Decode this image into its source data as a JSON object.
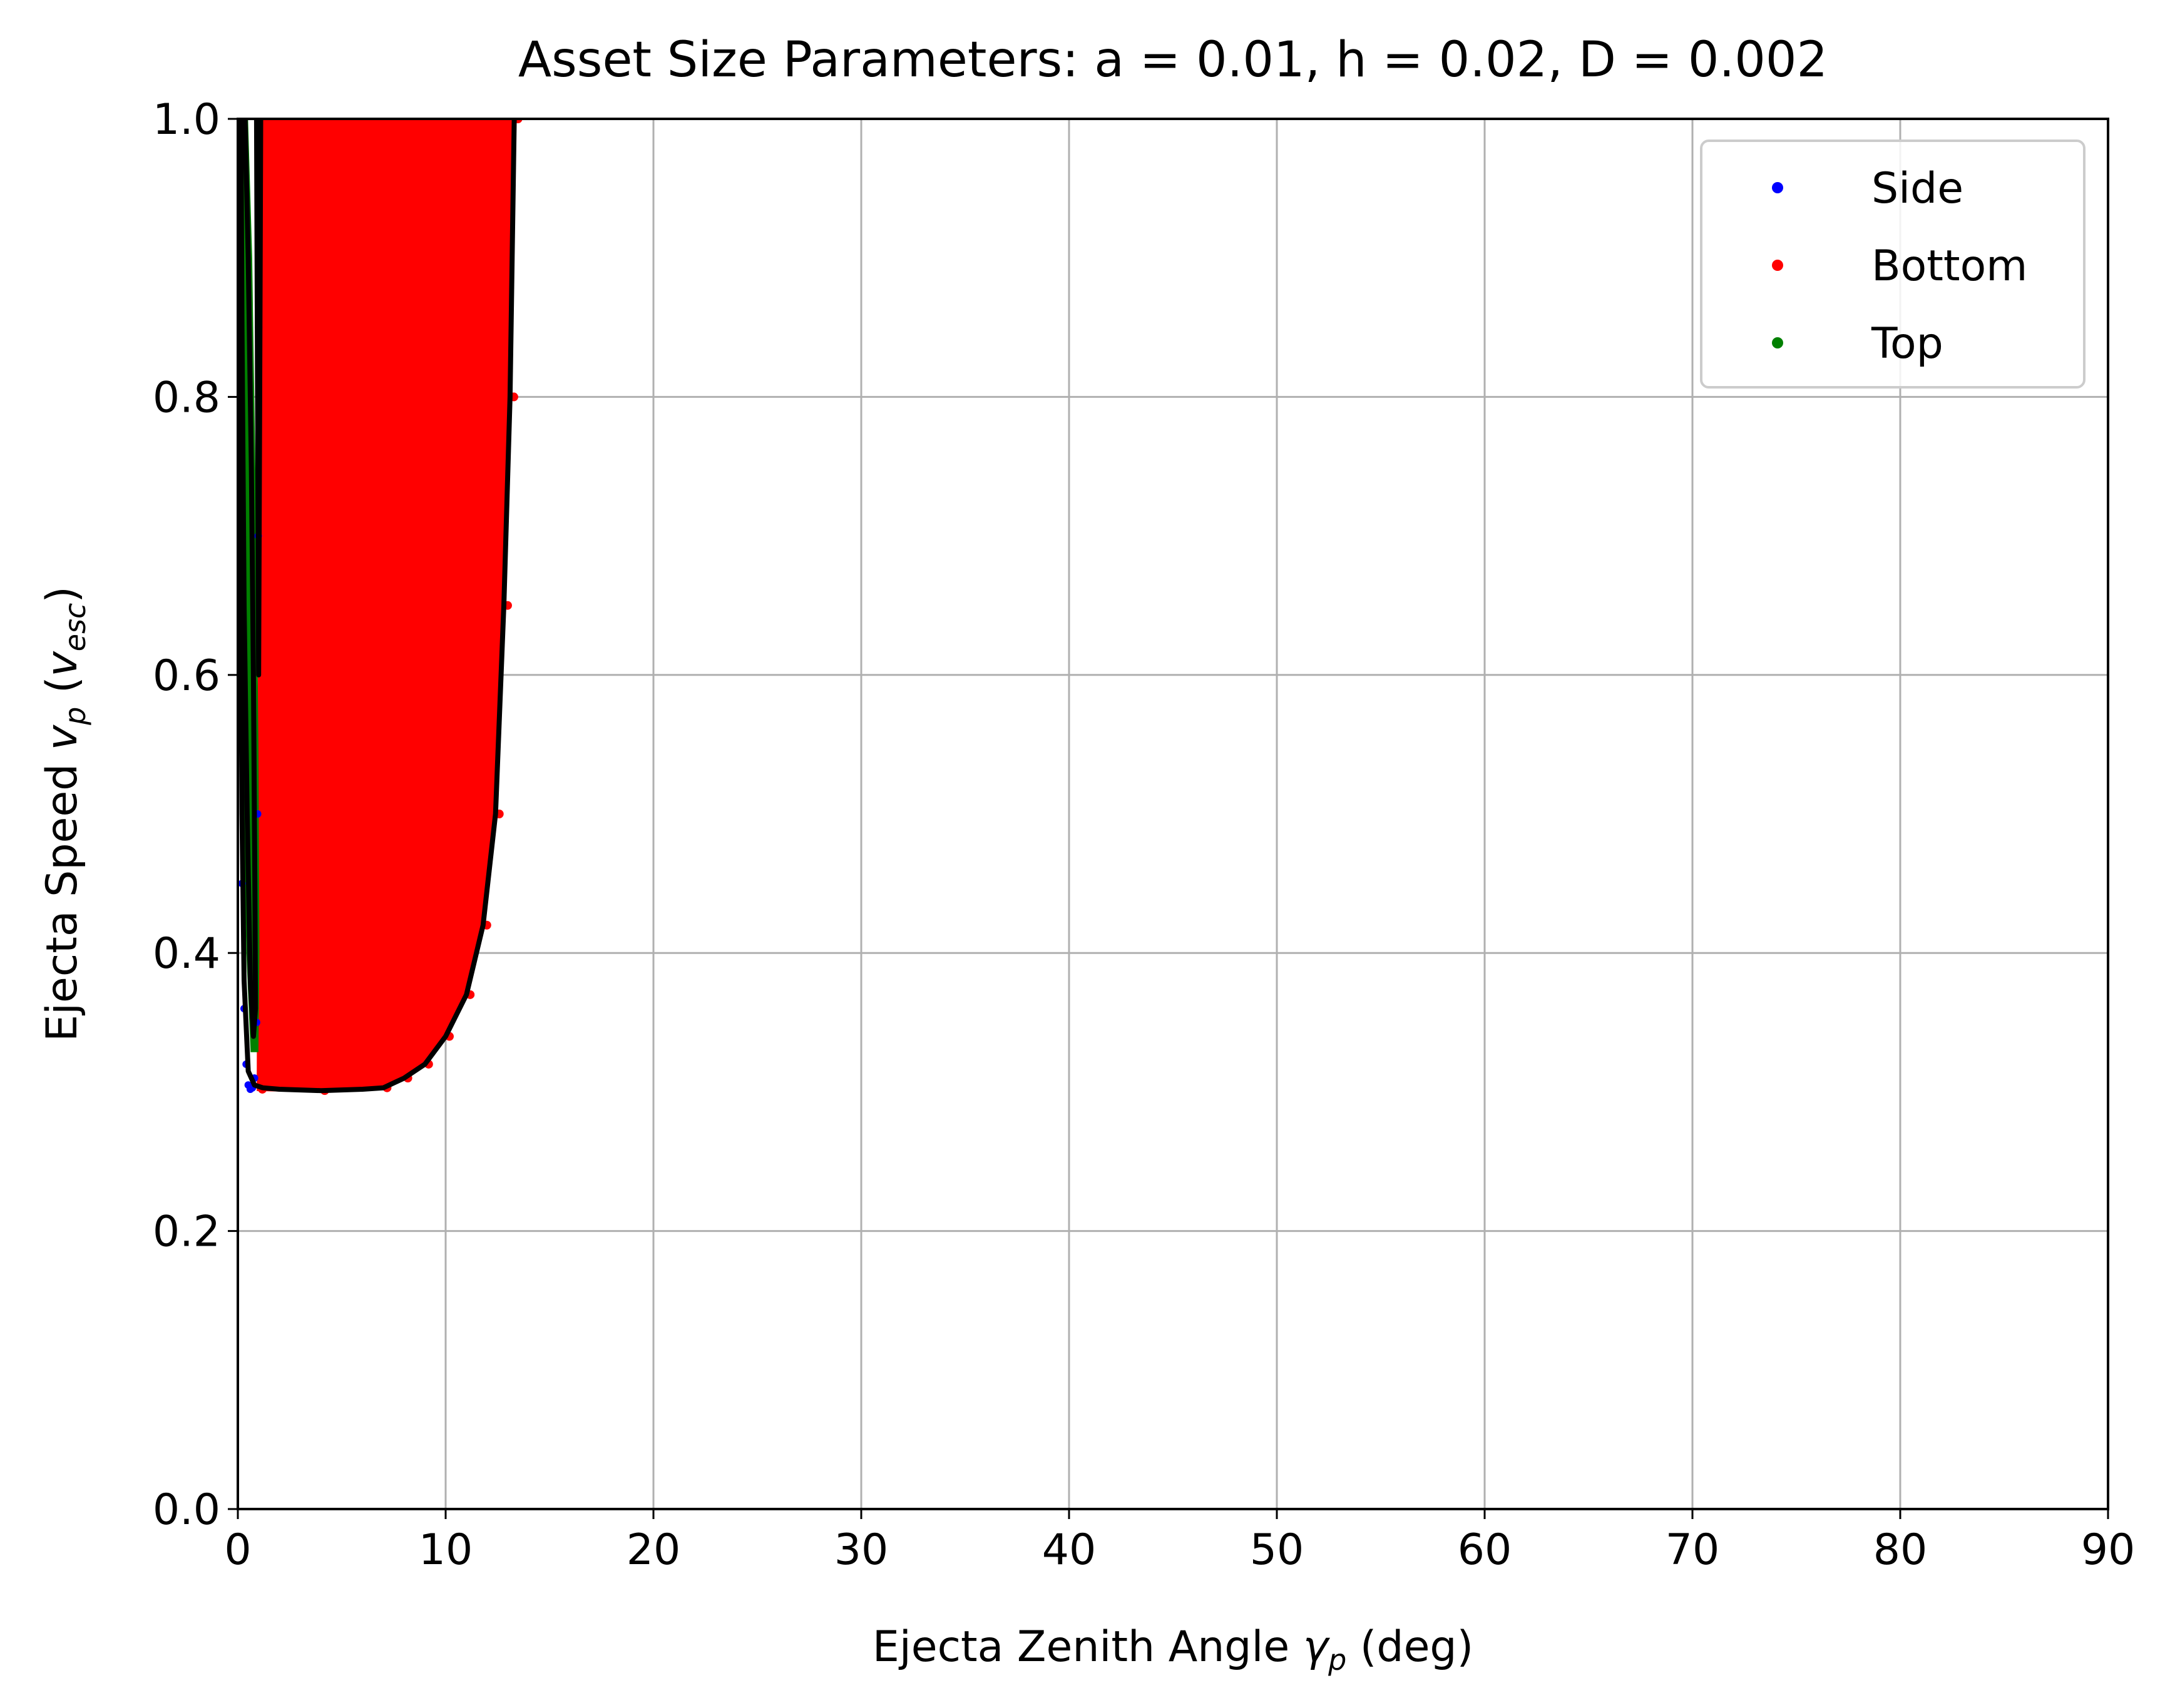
{
  "chart_data": {
    "type": "scatter",
    "title": "Asset Size Parameters: a = 0.01, h = 0.02, D = 0.002",
    "xlabel": {
      "prefix": "Ejecta Zenith Angle ",
      "symbol": "γ",
      "subscript": "p",
      "suffix": " (deg)"
    },
    "ylabel": {
      "prefix": "Ejecta Speed ",
      "symbol": "v",
      "subscript": "p",
      "middle": " (",
      "unit_symbol": "v",
      "unit_subscript": "esc",
      "suffix": ")"
    },
    "xlim": [
      0,
      90
    ],
    "ylim": [
      0,
      1.0
    ],
    "xticks": [
      0,
      10,
      20,
      30,
      40,
      50,
      60,
      70,
      80,
      90
    ],
    "xtick_labels": [
      "0",
      "10",
      "20",
      "30",
      "40",
      "50",
      "60",
      "70",
      "80",
      "90"
    ],
    "yticks": [
      0.0,
      0.2,
      0.4,
      0.6,
      0.8,
      1.0
    ],
    "ytick_labels": [
      "0.0",
      "0.2",
      "0.4",
      "0.6",
      "0.8",
      "1.0"
    ],
    "grid": true,
    "legend_position": "top-right",
    "series": [
      {
        "name": "Side",
        "color": "#0000ff",
        "points": [
          [
            0.05,
            1.0
          ],
          [
            0.1,
            0.8
          ],
          [
            0.15,
            0.6
          ],
          [
            0.2,
            0.45
          ],
          [
            0.3,
            0.36
          ],
          [
            0.4,
            0.32
          ],
          [
            0.5,
            0.305
          ],
          [
            0.6,
            0.302
          ],
          [
            0.7,
            0.303
          ],
          [
            0.8,
            0.31
          ],
          [
            0.9,
            0.35
          ],
          [
            0.95,
            0.5
          ],
          [
            0.98,
            0.7
          ],
          [
            1.0,
            0.85
          ],
          [
            1.02,
            1.0
          ]
        ]
      },
      {
        "name": "Bottom",
        "color": "#ff0000",
        "region": {
          "left_boundary": [
            [
              1.0,
              0.31
            ],
            [
              1.05,
              0.6
            ],
            [
              1.1,
              0.85
            ],
            [
              1.15,
              1.0
            ]
          ],
          "right_boundary": [
            [
              13.3,
              1.0
            ],
            [
              13.1,
              0.8
            ],
            [
              12.8,
              0.65
            ],
            [
              12.4,
              0.5
            ],
            [
              11.8,
              0.42
            ],
            [
              11.0,
              0.37
            ],
            [
              10.0,
              0.34
            ],
            [
              9.0,
              0.32
            ],
            [
              8.0,
              0.31
            ],
            [
              7.0,
              0.303
            ],
            [
              4.0,
              0.301
            ],
            [
              1.0,
              0.302
            ]
          ]
        }
      },
      {
        "name": "Top",
        "color": "#008000",
        "region": {
          "polygon": [
            [
              0.15,
              1.0
            ],
            [
              0.4,
              1.0
            ],
            [
              0.6,
              0.9
            ],
            [
              0.8,
              0.7
            ],
            [
              0.9,
              0.55
            ],
            [
              0.95,
              0.4
            ],
            [
              0.9,
              0.33
            ],
            [
              0.7,
              0.33
            ],
            [
              0.5,
              0.4
            ],
            [
              0.35,
              0.5
            ],
            [
              0.25,
              0.6
            ],
            [
              0.2,
              0.75
            ],
            [
              0.15,
              0.9
            ]
          ]
        }
      }
    ],
    "boundary_curves": [
      {
        "name": "outer-boundary",
        "color": "#000000",
        "points": [
          [
            0.05,
            1.0
          ],
          [
            0.1,
            0.75
          ],
          [
            0.2,
            0.5
          ],
          [
            0.3,
            0.38
          ],
          [
            0.5,
            0.315
          ],
          [
            0.8,
            0.305
          ],
          [
            1.2,
            0.303
          ],
          [
            2.0,
            0.302
          ],
          [
            4.0,
            0.301
          ],
          [
            6.0,
            0.302
          ],
          [
            7.0,
            0.303
          ],
          [
            8.0,
            0.31
          ],
          [
            9.0,
            0.32
          ],
          [
            10.0,
            0.34
          ],
          [
            11.0,
            0.37
          ],
          [
            11.8,
            0.42
          ],
          [
            12.4,
            0.5
          ],
          [
            12.8,
            0.65
          ],
          [
            13.1,
            0.8
          ],
          [
            13.3,
            1.0
          ]
        ]
      },
      {
        "name": "top-boundary",
        "color": "#000000",
        "points": [
          [
            0.35,
            1.0
          ],
          [
            0.5,
            0.9
          ],
          [
            0.65,
            0.75
          ],
          [
            0.75,
            0.6
          ],
          [
            0.82,
            0.45
          ],
          [
            0.85,
            0.36
          ],
          [
            0.75,
            0.34
          ],
          [
            0.6,
            0.38
          ],
          [
            0.45,
            0.5
          ],
          [
            0.3,
            0.65
          ],
          [
            0.2,
            0.85
          ],
          [
            0.15,
            1.0
          ]
        ]
      },
      {
        "name": "side-bottom-boundary",
        "color": "#000000",
        "points": [
          [
            0.9,
            1.0
          ],
          [
            0.95,
            0.8
          ],
          [
            1.0,
            0.6
          ],
          [
            1.05,
            0.8
          ],
          [
            1.1,
            1.0
          ]
        ]
      }
    ]
  }
}
